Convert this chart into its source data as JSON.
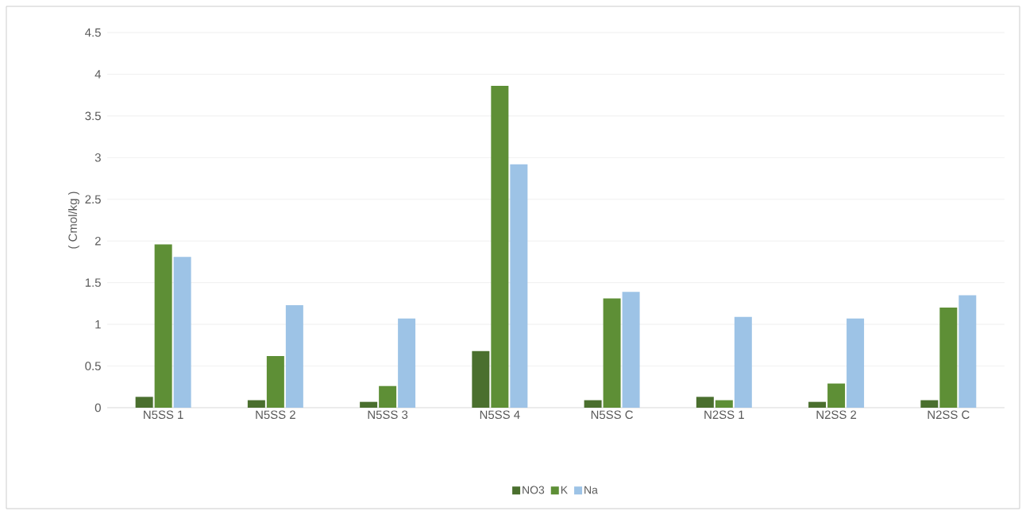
{
  "chart_data": {
    "type": "bar",
    "ylabel": "( Cmol/kg )",
    "categories": [
      "N5SS 1",
      "N5SS 2",
      "N5SS 3",
      "N5SS 4",
      "N5SS C",
      "N2SS 1",
      "N2SS 2",
      "N2SS C"
    ],
    "series": [
      {
        "name": "NO3",
        "color": "#4a6f2e",
        "values": [
          0.13,
          0.09,
          0.07,
          0.68,
          0.09,
          0.13,
          0.07,
          0.09
        ]
      },
      {
        "name": "K",
        "color": "#5e8f36",
        "values": [
          1.96,
          0.62,
          0.26,
          3.86,
          1.31,
          0.09,
          0.29,
          1.2
        ]
      },
      {
        "name": "Na",
        "color": "#9dc3e6",
        "values": [
          1.81,
          1.23,
          1.07,
          2.92,
          1.39,
          1.09,
          1.07,
          1.35
        ]
      }
    ],
    "ylim": [
      0,
      4.5
    ],
    "yticks": [
      0,
      0.5,
      1,
      1.5,
      2,
      2.5,
      3,
      3.5,
      4,
      4.5
    ],
    "grid": "y",
    "legend": "bottom"
  }
}
